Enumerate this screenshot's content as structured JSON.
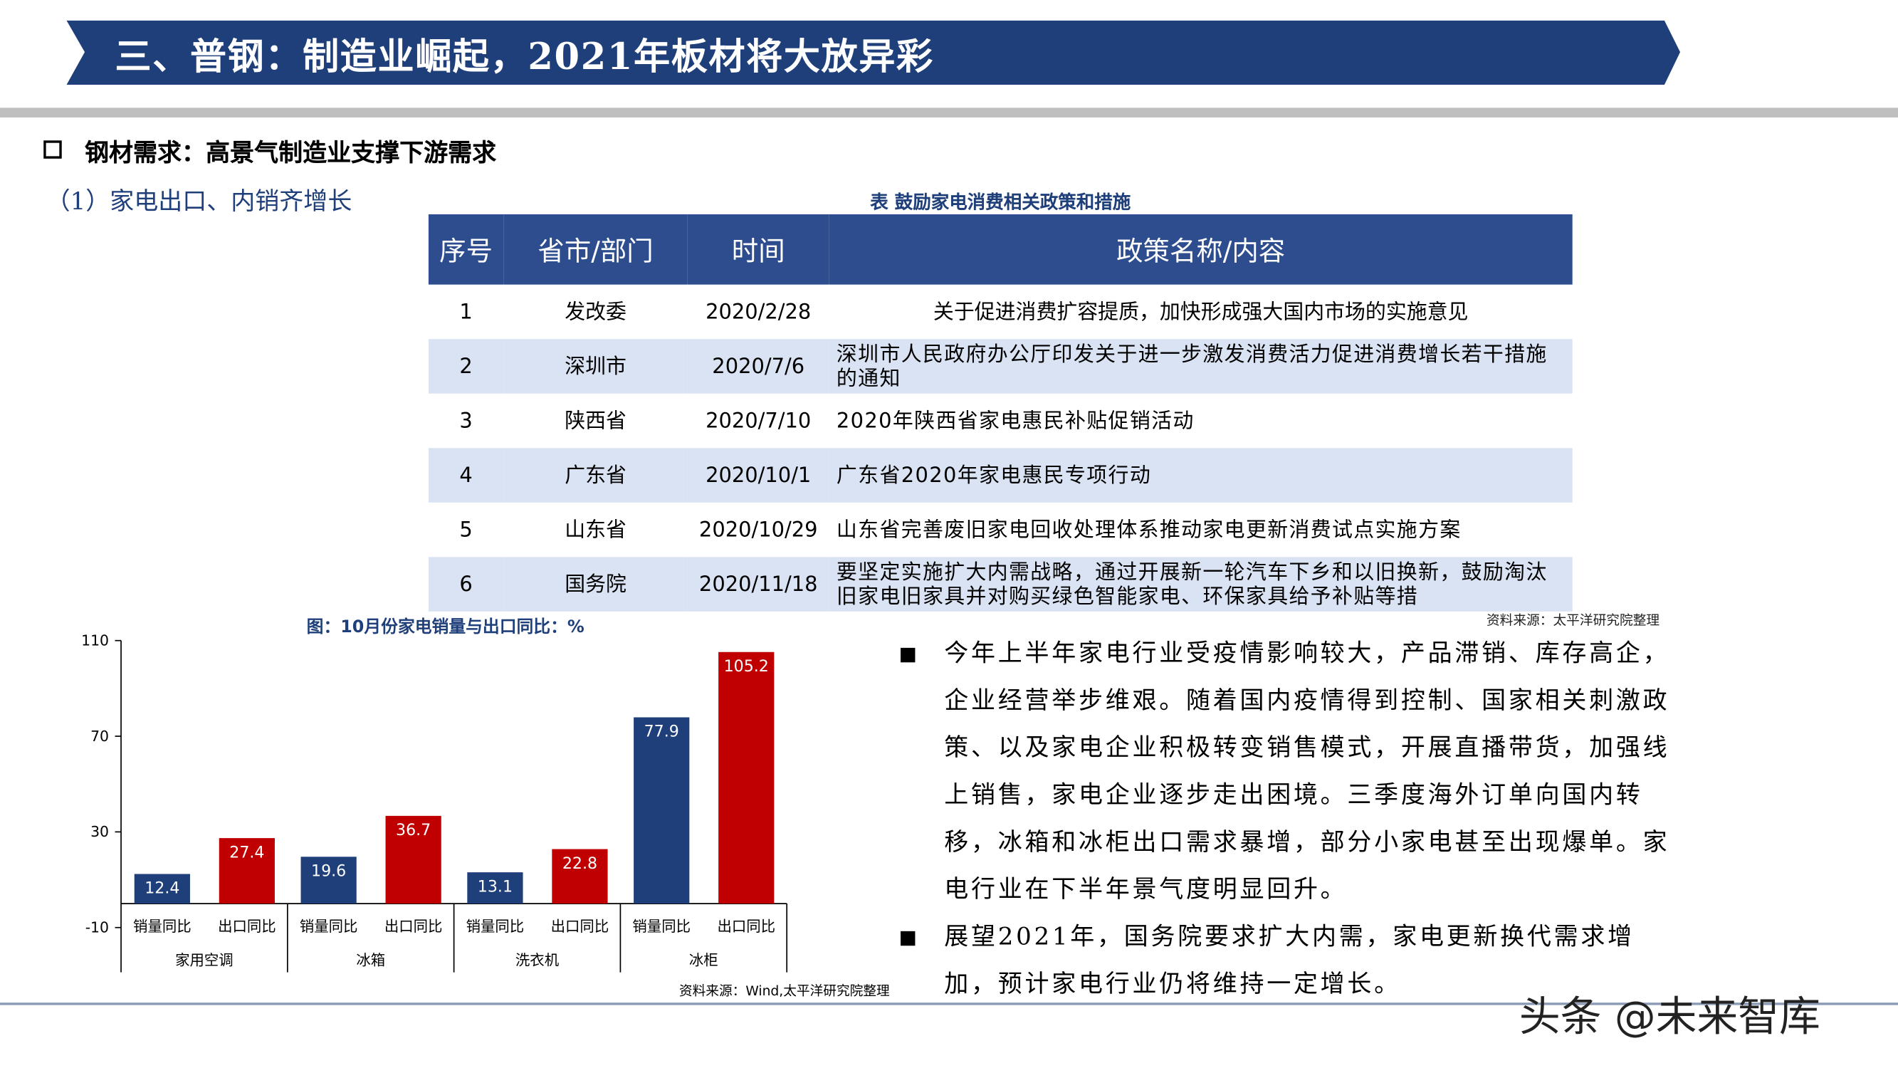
{
  "header": {
    "title": "三、普钢：制造业崛起，2021年板材将大放异彩"
  },
  "section": "钢材需求：高景气制造业支撑下游需求",
  "subsection": "（1）家电出口、内销齐增长",
  "table": {
    "caption": "表  鼓励家电消费相关政策和措施",
    "columns": [
      "序号",
      "省市/部门",
      "时间",
      "政策名称/内容"
    ],
    "rows": [
      [
        "1",
        "发改委",
        "2020/2/28",
        "关于促进消费扩容提质，加快形成强大国内市场的实施意见"
      ],
      [
        "2",
        "深圳市",
        "2020/7/6",
        "深圳市人民政府办公厅印发关于进一步激发消费活力促进消费增长若干措施的通知"
      ],
      [
        "3",
        "陕西省",
        "2020/7/10",
        "2020年陕西省家电惠民补贴促销活动"
      ],
      [
        "4",
        "广东省",
        "2020/10/1",
        "广东省2020年家电惠民专项行动"
      ],
      [
        "5",
        "山东省",
        "2020/10/29",
        "山东省完善废旧家电回收处理体系推动家电更新消费试点实施方案"
      ],
      [
        "6",
        "国务院",
        "2020/11/18",
        "要坚定实施扩大内需战略，通过开展新一轮汽车下乡和以旧换新，鼓励淘汰旧家电旧家具并对购买绿色智能家电、环保家具给予补贴等措"
      ]
    ],
    "source": "资料来源：太平洋研究院整理"
  },
  "chart_data": {
    "type": "bar",
    "title": "图：10月份家电销量与出口同比：%",
    "categories": [
      "家用空调",
      "冰箱",
      "洗衣机",
      "冰柜"
    ],
    "series": [
      {
        "name": "销量同比",
        "color": "#1f3f7a",
        "values": [
          12.4,
          19.6,
          13.1,
          77.9
        ]
      },
      {
        "name": "出口同比",
        "color": "#c00000",
        "values": [
          27.4,
          36.7,
          22.8,
          105.2
        ]
      }
    ],
    "ylim": [
      -10,
      110
    ],
    "yticks": [
      -10,
      30,
      70,
      110
    ],
    "source": "资料来源：Wind,太平洋研究院整理"
  },
  "bullets": [
    "今年上半年家电行业受疫情影响较大，产品滞销、库存高企，企业经营举步维艰。随着国内疫情得到控制、国家相关刺激政策、以及家电企业积极转变销售模式，开展直播带货，加强线上销售，家电企业逐步走出困境。三季度海外订单向国内转移，冰箱和冰柜出口需求暴增，部分小家电甚至出现爆单。家电行业在下半年景气度明显回升。",
    "展望2021年，国务院要求扩大内需，家电更新换代需求增加，预计家电行业仍将维持一定增长。"
  ],
  "watermark": "头条 @未来智库"
}
